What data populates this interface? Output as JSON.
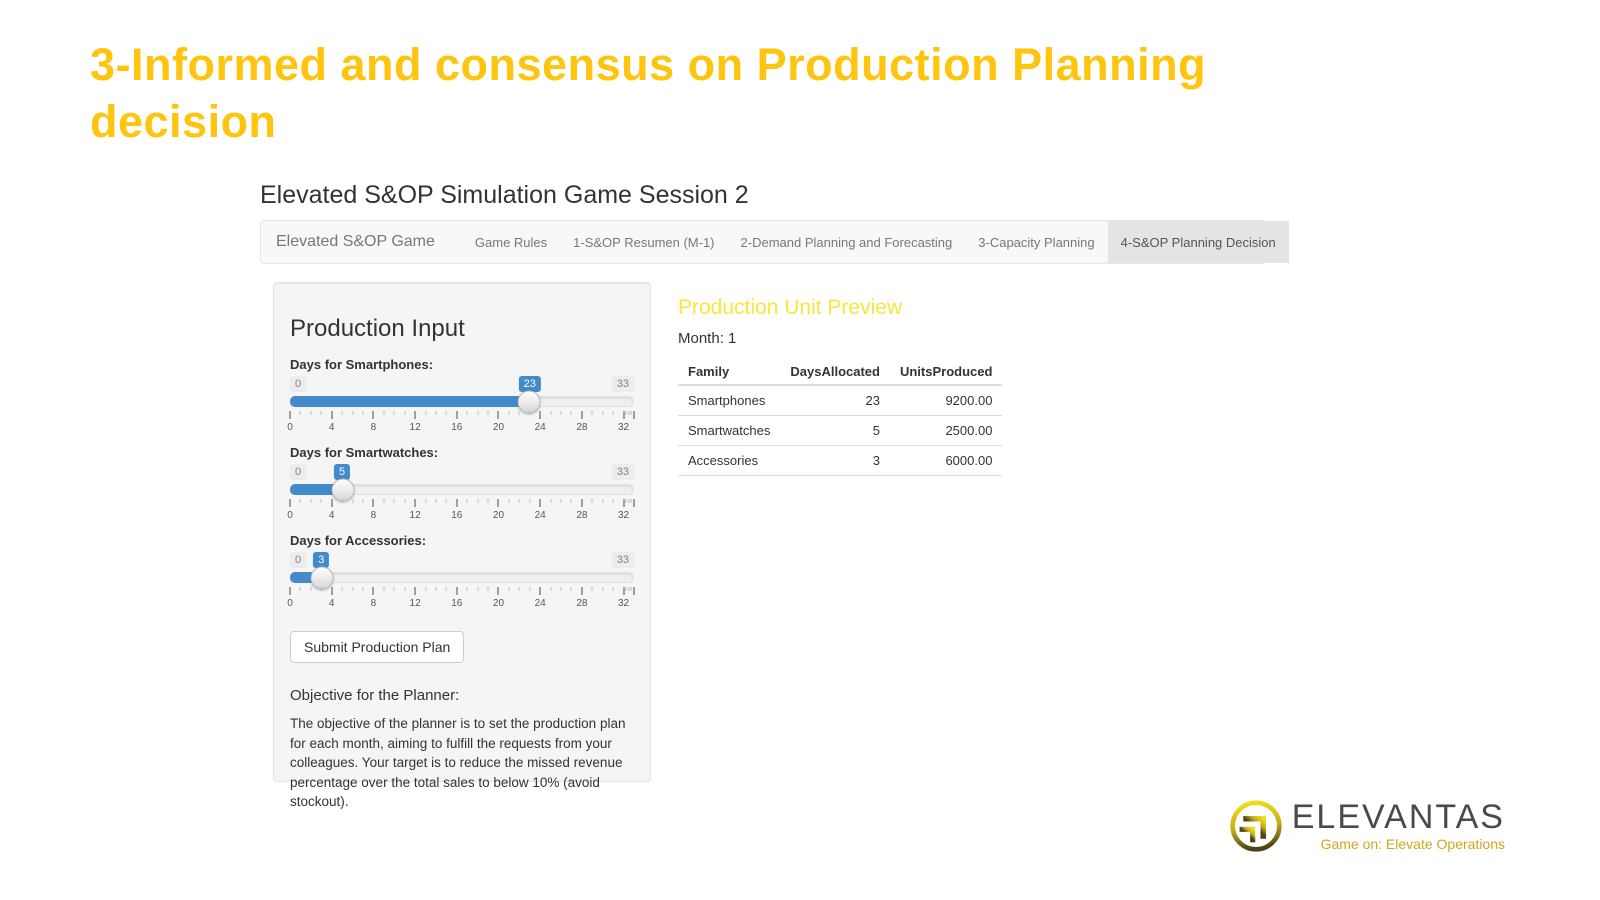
{
  "slide": {
    "title": "3-Informed and consensus on Production Planning decision"
  },
  "app": {
    "header": "Elevated S&OP Simulation Game Session 2",
    "navbar": {
      "brand": "Elevated S&OP Game",
      "tabs": [
        {
          "label": "Game Rules",
          "active": false
        },
        {
          "label": "1-S&OP Resumen (M-1)",
          "active": false
        },
        {
          "label": "2-Demand Planning and Forecasting",
          "active": false
        },
        {
          "label": "3-Capacity Planning",
          "active": false
        },
        {
          "label": "4-S&OP Planning Decision",
          "active": true
        }
      ]
    },
    "production_input": {
      "title": "Production Input",
      "sliders": [
        {
          "id": "smartphones",
          "label": "Days for Smartphones:",
          "min": 0,
          "max": 33,
          "value": 23
        },
        {
          "id": "smartwatches",
          "label": "Days for Smartwatches:",
          "min": 0,
          "max": 33,
          "value": 5
        },
        {
          "id": "accessories",
          "label": "Days for Accessories:",
          "min": 0,
          "max": 33,
          "value": 3
        }
      ],
      "tick_labels": [
        0,
        4,
        8,
        12,
        16,
        20,
        24,
        28,
        32
      ],
      "submit_label": "Submit Production Plan",
      "objective_title": "Objective for the Planner:",
      "objective_text": "The objective of the planner is to set the production plan for each month, aiming to fulfill the requests from your colleagues. Your target is to reduce the missed revenue percentage over the total sales to below 10% (avoid stockout)."
    },
    "preview": {
      "title": "Production Unit Preview",
      "month_label": "Month: 1",
      "table": {
        "headers": [
          "Family",
          "DaysAllocated",
          "UnitsProduced"
        ],
        "rows": [
          [
            "Smartphones",
            "23",
            "9200.00"
          ],
          [
            "Smartwatches",
            "5",
            "2500.00"
          ],
          [
            "Accessories",
            "3",
            "6000.00"
          ]
        ]
      }
    }
  },
  "logo": {
    "name": "ELEVANTAS",
    "tagline": "Game on: Elevate Operations"
  },
  "colors": {
    "slide_title": "#FFC40D",
    "preview_title": "#FAE53D",
    "slider_accent": "#428bca",
    "navbar_bg": "#f8f8f8",
    "active_tab_bg": "#e4e4e4",
    "panel_bg": "#f5f5f5"
  }
}
